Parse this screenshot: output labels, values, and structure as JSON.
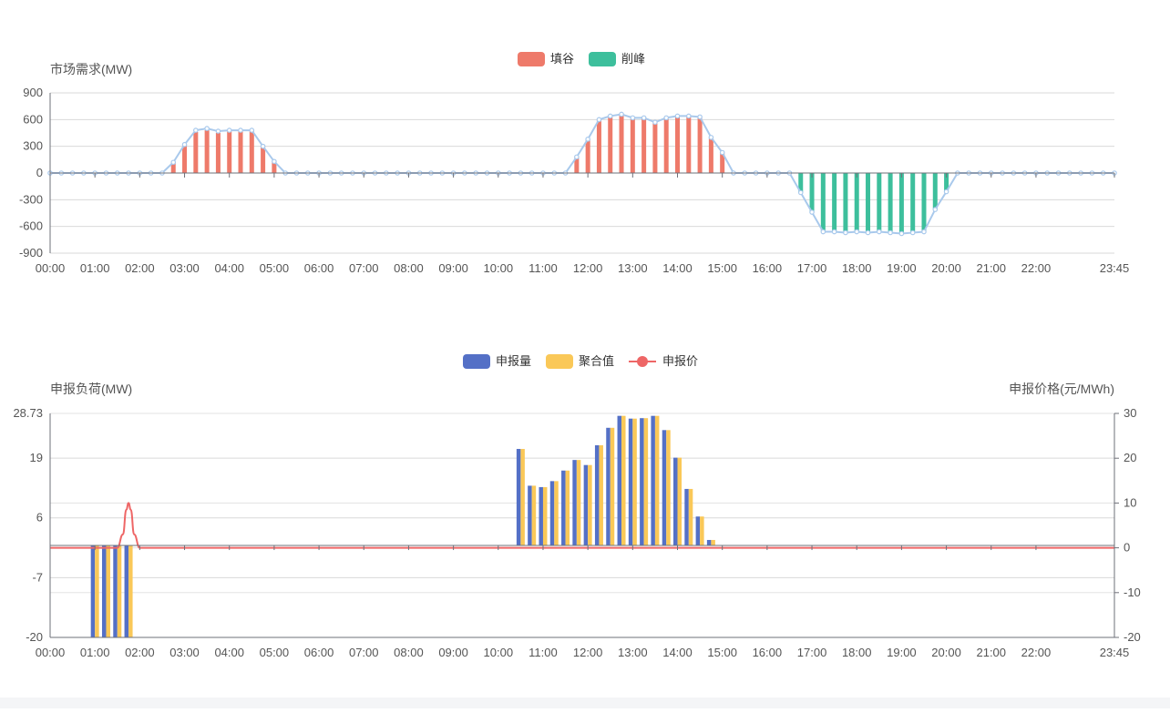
{
  "chart_data": [
    {
      "type": "bar",
      "legend": [
        "填谷",
        "削峰"
      ],
      "legend_placement": "top-center",
      "ylabel": "市场需求(MW)",
      "xlabel": "",
      "ylim": [
        -900,
        900
      ],
      "yticks": [
        "900",
        "600",
        "300",
        "0",
        "-300",
        "-600",
        "-900"
      ],
      "xtick_labels": [
        "00:00",
        "01:00",
        "02:00",
        "03:00",
        "04:00",
        "05:00",
        "06:00",
        "07:00",
        "08:00",
        "09:00",
        "10:00",
        "11:00",
        "12:00",
        "13:00",
        "14:00",
        "15:00",
        "16:00",
        "17:00",
        "18:00",
        "19:00",
        "20:00",
        "21:00",
        "22:00",
        "23:45"
      ],
      "x_interval_minutes": 15,
      "grid": true,
      "colors": {
        "fill_valley": "#ee7a6a",
        "peak_shaving": "#3dbf9c",
        "line": "#a9c9ec"
      },
      "series": [
        {
          "name": "填谷",
          "kind": "bar",
          "points": [
            [
              2.75,
              120
            ],
            [
              3.0,
              320
            ],
            [
              3.25,
              460
            ],
            [
              3.5,
              480
            ],
            [
              3.75,
              450
            ],
            [
              4.0,
              470
            ],
            [
              4.25,
              470
            ],
            [
              4.5,
              470
            ],
            [
              4.75,
              300
            ],
            [
              5.0,
              130
            ],
            [
              11.75,
              180
            ],
            [
              12.0,
              380
            ],
            [
              12.25,
              600
            ],
            [
              12.5,
              630
            ],
            [
              12.75,
              650
            ],
            [
              13.0,
              610
            ],
            [
              13.25,
              610
            ],
            [
              13.5,
              560
            ],
            [
              13.75,
              610
            ],
            [
              14.0,
              630
            ],
            [
              14.25,
              640
            ],
            [
              14.5,
              620
            ],
            [
              14.75,
              390
            ],
            [
              15.0,
              220
            ]
          ]
        },
        {
          "name": "削峰",
          "kind": "bar",
          "points": [
            [
              16.75,
              -220
            ],
            [
              17.0,
              -440
            ],
            [
              17.25,
              -650
            ],
            [
              17.5,
              -650
            ],
            [
              17.75,
              -660
            ],
            [
              18.0,
              -650
            ],
            [
              18.25,
              -660
            ],
            [
              18.5,
              -650
            ],
            [
              18.75,
              -660
            ],
            [
              19.0,
              -670
            ],
            [
              19.25,
              -660
            ],
            [
              19.5,
              -650
            ],
            [
              19.75,
              -400
            ],
            [
              20.0,
              -200
            ]
          ]
        },
        {
          "kind": "line",
          "points": [
            [
              0,
              0
            ],
            [
              2.5,
              0
            ],
            [
              2.75,
              120
            ],
            [
              3.0,
              320
            ],
            [
              3.25,
              480
            ],
            [
              3.5,
              500
            ],
            [
              3.75,
              470
            ],
            [
              4.0,
              480
            ],
            [
              4.25,
              480
            ],
            [
              4.5,
              480
            ],
            [
              4.75,
              300
            ],
            [
              5.0,
              130
            ],
            [
              5.25,
              0
            ],
            [
              11.5,
              0
            ],
            [
              11.75,
              180
            ],
            [
              12.0,
              380
            ],
            [
              12.25,
              600
            ],
            [
              12.5,
              640
            ],
            [
              12.75,
              660
            ],
            [
              13.0,
              620
            ],
            [
              13.25,
              620
            ],
            [
              13.5,
              570
            ],
            [
              13.75,
              620
            ],
            [
              14.0,
              640
            ],
            [
              14.25,
              640
            ],
            [
              14.5,
              630
            ],
            [
              14.75,
              400
            ],
            [
              15.0,
              230
            ],
            [
              15.25,
              0
            ],
            [
              16.5,
              0
            ],
            [
              16.75,
              -220
            ],
            [
              17.0,
              -440
            ],
            [
              17.25,
              -660
            ],
            [
              17.5,
              -660
            ],
            [
              17.75,
              -670
            ],
            [
              18.0,
              -660
            ],
            [
              18.25,
              -670
            ],
            [
              18.5,
              -660
            ],
            [
              18.75,
              -670
            ],
            [
              19.0,
              -680
            ],
            [
              19.25,
              -670
            ],
            [
              19.5,
              -660
            ],
            [
              19.75,
              -410
            ],
            [
              20.0,
              -210
            ],
            [
              20.25,
              0
            ],
            [
              23.75,
              0
            ]
          ]
        }
      ]
    },
    {
      "type": "bar",
      "legend": [
        "申报量",
        "聚合值",
        "申报价"
      ],
      "legend_placement": "top-center",
      "ylabel": "申报负荷(MW)",
      "ylabel_right": "申报价格(元/MWh)",
      "ylim": [
        -20,
        28.73
      ],
      "yticks": [
        "28.73",
        "19",
        "6",
        "-7",
        "-20"
      ],
      "ylim_right": [
        -20,
        30
      ],
      "yticks_right": [
        "30",
        "20",
        "10",
        "0",
        "-10",
        "-20"
      ],
      "xtick_labels": [
        "00:00",
        "01:00",
        "02:00",
        "03:00",
        "04:00",
        "05:00",
        "06:00",
        "07:00",
        "08:00",
        "09:00",
        "10:00",
        "11:00",
        "12:00",
        "13:00",
        "14:00",
        "15:00",
        "16:00",
        "17:00",
        "18:00",
        "19:00",
        "20:00",
        "21:00",
        "22:00",
        "23:45"
      ],
      "grid": true,
      "colors": {
        "declared": "#5470c6",
        "aggregate": "#fac858",
        "price": "#ee6666"
      },
      "series": [
        {
          "name": "申报量",
          "kind": "bar",
          "points": [
            [
              1.0,
              -20
            ],
            [
              1.25,
              -20
            ],
            [
              1.5,
              -20
            ],
            [
              1.75,
              -20
            ],
            [
              10.5,
              21
            ],
            [
              10.75,
              13
            ],
            [
              11.0,
              12.7
            ],
            [
              11.25,
              14
            ],
            [
              11.5,
              16.3
            ],
            [
              11.75,
              18.6
            ],
            [
              12.0,
              17.5
            ],
            [
              12.25,
              21.8
            ],
            [
              12.5,
              25.6
            ],
            [
              12.75,
              28.2
            ],
            [
              13.0,
              27.6
            ],
            [
              13.25,
              27.7
            ],
            [
              13.5,
              28.2
            ],
            [
              13.75,
              25.1
            ],
            [
              14.0,
              19.1
            ],
            [
              14.25,
              12.3
            ],
            [
              14.5,
              6.3
            ],
            [
              14.75,
              1.2
            ]
          ]
        },
        {
          "name": "聚合值",
          "kind": "bar",
          "points": [
            [
              1.0,
              -20
            ],
            [
              1.25,
              -20
            ],
            [
              1.5,
              -20
            ],
            [
              1.75,
              -20
            ],
            [
              10.5,
              21
            ],
            [
              10.75,
              13
            ],
            [
              11.0,
              12.7
            ],
            [
              11.25,
              14
            ],
            [
              11.5,
              16.3
            ],
            [
              11.75,
              18.6
            ],
            [
              12.0,
              17.5
            ],
            [
              12.25,
              21.8
            ],
            [
              12.5,
              25.6
            ],
            [
              12.75,
              28.2
            ],
            [
              13.0,
              27.6
            ],
            [
              13.25,
              27.7
            ],
            [
              13.5,
              28.2
            ],
            [
              13.75,
              25.1
            ],
            [
              14.0,
              19.1
            ],
            [
              14.25,
              12.3
            ],
            [
              14.5,
              6.3
            ],
            [
              14.75,
              1.2
            ]
          ]
        },
        {
          "name": "申报价",
          "kind": "line",
          "axis": "right",
          "points": [
            [
              0,
              0
            ],
            [
              1.5,
              0
            ],
            [
              1.625,
              3
            ],
            [
              1.7,
              8.5
            ],
            [
              1.75,
              10
            ],
            [
              1.8,
              8.5
            ],
            [
              1.875,
              3
            ],
            [
              2.0,
              0
            ],
            [
              23.75,
              0
            ]
          ]
        }
      ]
    }
  ]
}
